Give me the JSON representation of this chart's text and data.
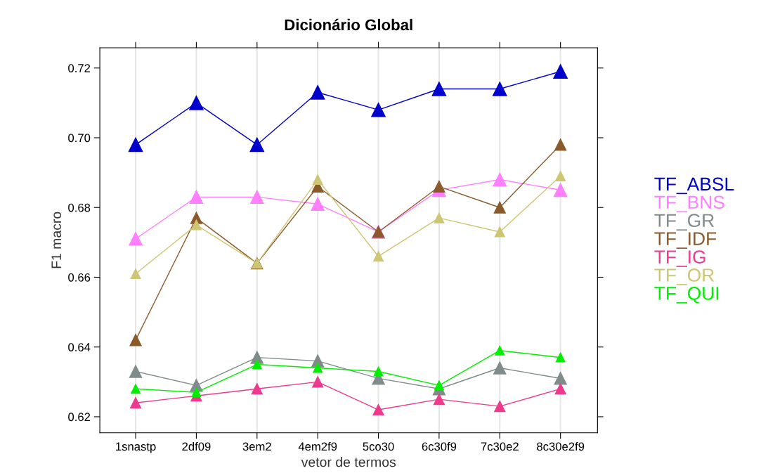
{
  "chart_data": {
    "type": "line",
    "title": "Dicionário Global",
    "xlabel": "vetor de termos",
    "ylabel": "F1 macro",
    "categories": [
      "1snastp",
      "2df09",
      "3em2",
      "4em2f9",
      "5co30",
      "6c30f9",
      "7c30e2",
      "8c30e2f9"
    ],
    "ylim": [
      0.6154,
      0.7258
    ],
    "yticks": [
      0.62,
      0.64,
      0.66,
      0.68,
      {
        "value": 0.7,
        "label": "0.70"
      },
      0.72
    ],
    "grid": "x",
    "legend": "right",
    "marker": "triangle",
    "line_style": "solid",
    "series": [
      {
        "name": "TF_ABSL",
        "color": "#0000cc",
        "values": [
          0.698,
          0.71,
          0.698,
          0.713,
          0.708,
          0.714,
          0.714,
          0.719
        ]
      },
      {
        "name": "TF_BNS",
        "color": "#ff80ff",
        "values": [
          0.671,
          0.683,
          0.683,
          0.681,
          0.673,
          0.685,
          0.688,
          0.685
        ]
      },
      {
        "name": "TF_GR",
        "color": "#808b8b",
        "values": [
          0.633,
          0.629,
          0.637,
          0.636,
          0.631,
          0.628,
          0.634,
          0.631
        ]
      },
      {
        "name": "TF_IDF",
        "color": "#8b5a2b",
        "values": [
          0.642,
          0.677,
          0.664,
          0.686,
          0.673,
          0.686,
          0.68,
          0.698
        ]
      },
      {
        "name": "TF_IG",
        "color": "#ee3a8c",
        "values": [
          0.624,
          0.626,
          0.628,
          0.63,
          0.622,
          0.625,
          0.623,
          0.628
        ]
      },
      {
        "name": "TF_OR",
        "color": "#cdc673",
        "values": [
          0.661,
          0.675,
          0.664,
          0.688,
          0.666,
          0.677,
          0.673,
          0.689
        ]
      },
      {
        "name": "TF_QUI",
        "color": "#00ee00",
        "values": [
          0.628,
          0.627,
          0.635,
          0.634,
          0.633,
          0.629,
          0.639,
          0.637
        ]
      }
    ]
  }
}
